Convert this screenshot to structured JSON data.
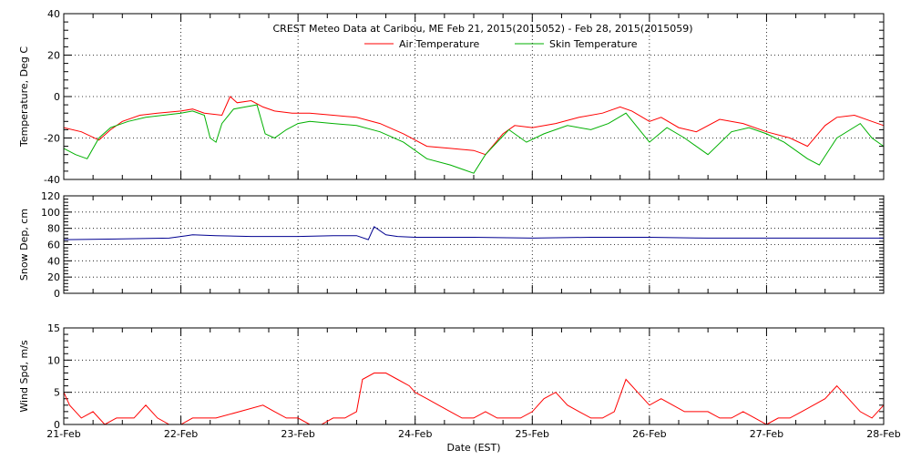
{
  "chart_data": {
    "title": "CREST Meteo Data at Caribou, ME   Feb 21, 2015(2015052) - Feb 28, 2015(2015059)",
    "type": "line",
    "xlabel": "Date (EST)",
    "x_ticks": [
      "21-Feb",
      "22-Feb",
      "23-Feb",
      "24-Feb",
      "25-Feb",
      "26-Feb",
      "27-Feb",
      "28-Feb"
    ],
    "xlim": [
      0,
      7
    ],
    "grid": true,
    "legend_placement": "top-center",
    "panels": [
      {
        "ylabel": "Temperature, Deg C",
        "ylim": [
          -40,
          40
        ],
        "yticks": [
          -40,
          -20,
          0,
          20,
          40
        ],
        "series": [
          {
            "name": "Air Temperature",
            "color": "#ff0000",
            "x": [
              0,
              0.15,
              0.3,
              0.4,
              0.5,
              0.65,
              0.8,
              1.0,
              1.1,
              1.2,
              1.35,
              1.42,
              1.48,
              1.6,
              1.7,
              1.8,
              1.95,
              2.1,
              2.3,
              2.5,
              2.7,
              2.9,
              3.1,
              3.3,
              3.5,
              3.6,
              3.75,
              3.85,
              4.0,
              4.2,
              4.4,
              4.6,
              4.75,
              4.85,
              5.0,
              5.1,
              5.25,
              5.4,
              5.6,
              5.8,
              6.0,
              6.2,
              6.35,
              6.5,
              6.6,
              6.75,
              6.9,
              7.0
            ],
            "y": [
              -15,
              -17,
              -21,
              -16,
              -12,
              -9,
              -8,
              -7,
              -6,
              -8,
              -9,
              0,
              -3,
              -2,
              -5,
              -7,
              -8,
              -8,
              -9,
              -10,
              -13,
              -18,
              -24,
              -25,
              -26,
              -28,
              -18,
              -14,
              -15,
              -13,
              -10,
              -8,
              -5,
              -7,
              -12,
              -10,
              -15,
              -17,
              -11,
              -13,
              -17,
              -20,
              -24,
              -14,
              -10,
              -9,
              -12,
              -14
            ]
          },
          {
            "name": "Skin Temperature",
            "color": "#00b000",
            "x": [
              0,
              0.1,
              0.2,
              0.3,
              0.4,
              0.55,
              0.7,
              0.85,
              1.0,
              1.1,
              1.2,
              1.25,
              1.3,
              1.35,
              1.45,
              1.55,
              1.65,
              1.72,
              1.8,
              1.9,
              2.0,
              2.1,
              2.3,
              2.5,
              2.7,
              2.9,
              3.1,
              3.3,
              3.5,
              3.6,
              3.8,
              3.95,
              4.1,
              4.3,
              4.5,
              4.65,
              4.8,
              5.0,
              5.15,
              5.3,
              5.5,
              5.7,
              5.85,
              6.0,
              6.15,
              6.35,
              6.45,
              6.6,
              6.8,
              6.9,
              7.0
            ],
            "y": [
              -25,
              -28,
              -30,
              -20,
              -15,
              -12,
              -10,
              -9,
              -8,
              -7,
              -9,
              -20,
              -22,
              -13,
              -6,
              -5,
              -4,
              -18,
              -20,
              -16,
              -13,
              -12,
              -13,
              -14,
              -17,
              -22,
              -30,
              -33,
              -37,
              -28,
              -16,
              -22,
              -18,
              -14,
              -16,
              -13,
              -8,
              -22,
              -15,
              -20,
              -28,
              -17,
              -15,
              -18,
              -22,
              -30,
              -33,
              -20,
              -13,
              -20,
              -24
            ]
          }
        ]
      },
      {
        "ylabel": "Snow Dep, cm",
        "ylim": [
          0,
          120
        ],
        "yticks": [
          0,
          20,
          40,
          60,
          80,
          100,
          120
        ],
        "series": [
          {
            "color": "#000090",
            "x": [
              0,
              0.5,
              0.9,
              1.05,
              1.1,
              1.3,
              1.6,
              2.0,
              2.3,
              2.5,
              2.6,
              2.65,
              2.75,
              2.85,
              3.0,
              3.5,
              4.0,
              4.5,
              5.0,
              5.5,
              6.0,
              6.5,
              7.0
            ],
            "y": [
              66,
              67,
              68,
              71,
              72,
              71,
              70,
              70,
              71,
              71,
              66,
              82,
              72,
              70,
              69,
              69,
              68,
              69,
              69,
              68,
              68,
              68,
              68
            ]
          }
        ]
      },
      {
        "ylabel": "Wind Spd, m/s",
        "ylim": [
          0,
          15
        ],
        "yticks": [
          0,
          5,
          10,
          15
        ],
        "series": [
          {
            "color": "#ff0000",
            "x": [
              0,
              0.05,
              0.15,
              0.25,
              0.35,
              0.45,
              0.6,
              0.7,
              0.8,
              0.9,
              1.0,
              1.1,
              1.3,
              1.5,
              1.7,
              1.8,
              1.9,
              2.0,
              2.1,
              2.2,
              2.3,
              2.4,
              2.5,
              2.55,
              2.65,
              2.75,
              2.85,
              2.95,
              3.0,
              3.1,
              3.2,
              3.3,
              3.4,
              3.5,
              3.6,
              3.7,
              3.8,
              3.9,
              4.0,
              4.1,
              4.2,
              4.3,
              4.4,
              4.5,
              4.6,
              4.7,
              4.8,
              4.9,
              5.0,
              5.1,
              5.2,
              5.3,
              5.4,
              5.5,
              5.6,
              5.7,
              5.8,
              5.9,
              6.0,
              6.1,
              6.2,
              6.3,
              6.4,
              6.5,
              6.6,
              6.7,
              6.8,
              6.9,
              7.0
            ],
            "y": [
              5,
              3,
              1,
              2,
              0,
              1,
              1,
              3,
              1,
              0,
              0,
              1,
              1,
              2,
              3,
              2,
              1,
              1,
              0,
              0,
              1,
              1,
              2,
              7,
              8,
              8,
              7,
              6,
              5,
              4,
              3,
              2,
              1,
              1,
              2,
              1,
              1,
              1,
              2,
              4,
              5,
              3,
              2,
              1,
              1,
              2,
              7,
              5,
              3,
              4,
              3,
              2,
              2,
              2,
              1,
              1,
              2,
              1,
              0,
              1,
              1,
              2,
              3,
              4,
              6,
              4,
              2,
              1,
              3
            ]
          }
        ]
      }
    ]
  }
}
